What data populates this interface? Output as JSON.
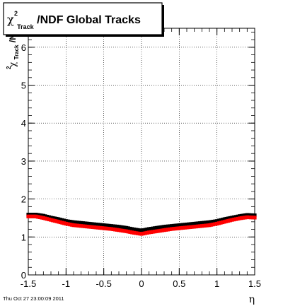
{
  "chart_data": {
    "type": "scatter",
    "title": {
      "chi": "χ",
      "sup": "2",
      "sub": "Track",
      "rest": "/NDF  Global Tracks"
    },
    "xlabel": "η",
    "ylabel": {
      "chi": "χ",
      "sup": "2",
      "sub": "Track",
      "rest": "/NDF"
    },
    "xlim": [
      -1.5,
      1.5
    ],
    "ylim": [
      0,
      6.5
    ],
    "xticks": [
      -1.5,
      -1,
      -0.5,
      0,
      0.5,
      1,
      1.5
    ],
    "xtick_labels": [
      "-1.5",
      "-1",
      "-0.5",
      "0",
      "0.5",
      "1",
      "1.5"
    ],
    "yticks": [
      0,
      1,
      2,
      3,
      4,
      5,
      6
    ],
    "ytick_labels": [
      "0",
      "1",
      "2",
      "3",
      "4",
      "5",
      "6"
    ],
    "grid": true,
    "series": [
      {
        "color": "#000000",
        "x": [
          -1.5,
          -1.4,
          -1.3,
          -1.2,
          -1.1,
          -1.0,
          -0.9,
          -0.8,
          -0.7,
          -0.6,
          -0.5,
          -0.4,
          -0.3,
          -0.2,
          -0.1,
          0.0,
          0.1,
          0.2,
          0.3,
          0.4,
          0.5,
          0.6,
          0.7,
          0.8,
          0.9,
          1.0,
          1.1,
          1.2,
          1.3,
          1.4,
          1.5
        ],
        "y": [
          1.59,
          1.59,
          1.56,
          1.51,
          1.47,
          1.42,
          1.39,
          1.37,
          1.35,
          1.33,
          1.31,
          1.29,
          1.27,
          1.24,
          1.2,
          1.17,
          1.21,
          1.24,
          1.27,
          1.29,
          1.31,
          1.33,
          1.35,
          1.37,
          1.39,
          1.42,
          1.47,
          1.51,
          1.55,
          1.58,
          1.57
        ]
      },
      {
        "color": "#ff0000",
        "x": [
          -1.5,
          -1.4,
          -1.3,
          -1.2,
          -1.1,
          -1.0,
          -0.9,
          -0.8,
          -0.7,
          -0.6,
          -0.5,
          -0.4,
          -0.3,
          -0.2,
          -0.1,
          0.0,
          0.1,
          0.2,
          0.3,
          0.4,
          0.5,
          0.6,
          0.7,
          0.8,
          0.9,
          1.0,
          1.1,
          1.2,
          1.3,
          1.4,
          1.5
        ],
        "y": [
          1.54,
          1.54,
          1.5,
          1.45,
          1.4,
          1.35,
          1.31,
          1.29,
          1.27,
          1.25,
          1.23,
          1.21,
          1.18,
          1.15,
          1.11,
          1.08,
          1.12,
          1.15,
          1.18,
          1.21,
          1.23,
          1.25,
          1.27,
          1.29,
          1.31,
          1.35,
          1.4,
          1.45,
          1.49,
          1.52,
          1.51
        ]
      }
    ]
  },
  "footer": "Thu Oct 27 23:00:09 2011"
}
